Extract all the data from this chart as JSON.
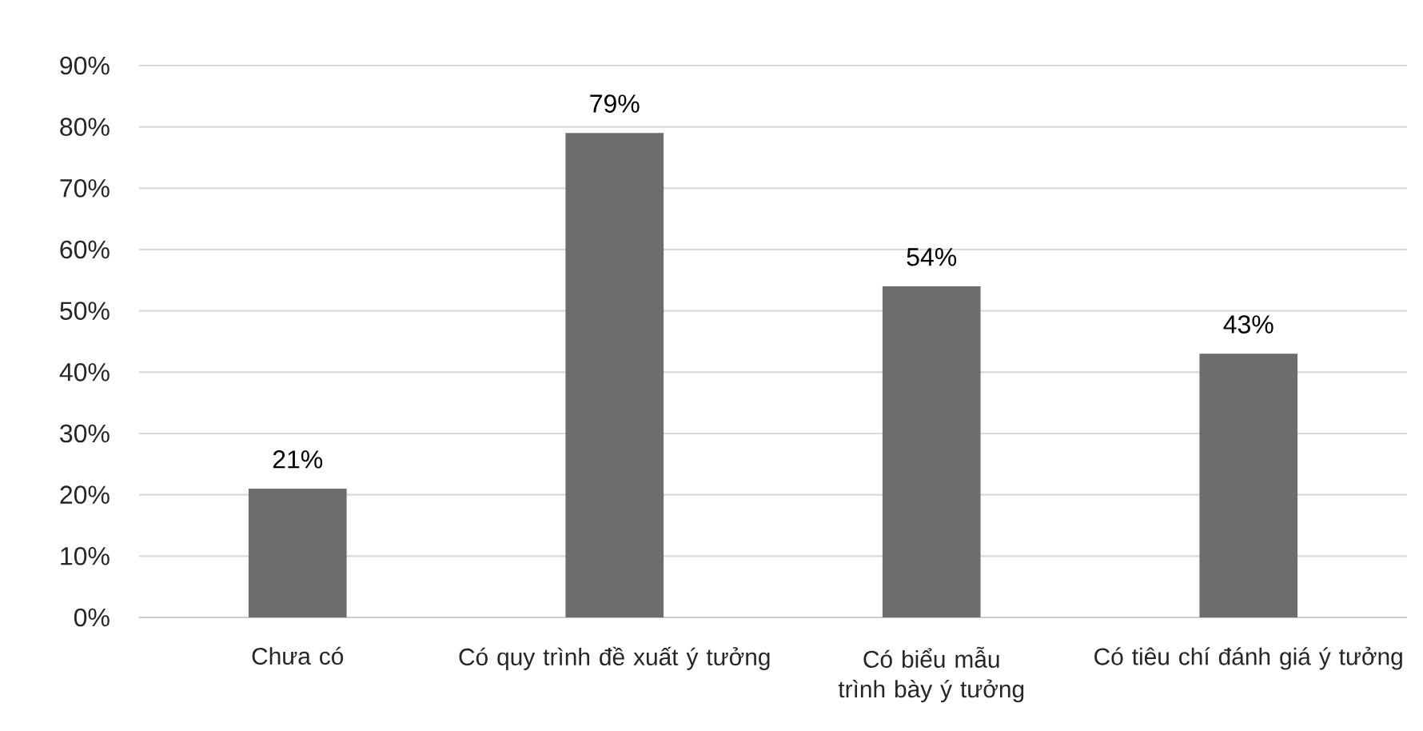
{
  "chart_data": {
    "type": "bar",
    "categories": [
      "Chưa có",
      "Có quy trình đề xuất ý tưởng",
      "Có biểu mẫu trình bày ý tưởng",
      "Có tiêu chí đánh giá ý tưởng"
    ],
    "values": [
      21,
      79,
      54,
      43
    ],
    "value_labels": [
      "21%",
      "79%",
      "54%",
      "43%"
    ],
    "color": "#6d6d6d",
    "ylim": [
      0,
      90
    ],
    "yticks": [
      {
        "value": 0,
        "label": "0%"
      },
      {
        "value": 10,
        "label": "10%"
      },
      {
        "value": 20,
        "label": "20%"
      },
      {
        "value": 30,
        "label": "30%"
      },
      {
        "value": 40,
        "label": "40%"
      },
      {
        "value": 50,
        "label": "50%"
      },
      {
        "value": 60,
        "label": "60%"
      },
      {
        "value": 70,
        "label": "70%"
      },
      {
        "value": 80,
        "label": "80%"
      },
      {
        "value": 90,
        "label": "90%"
      }
    ],
    "grid": "y"
  }
}
